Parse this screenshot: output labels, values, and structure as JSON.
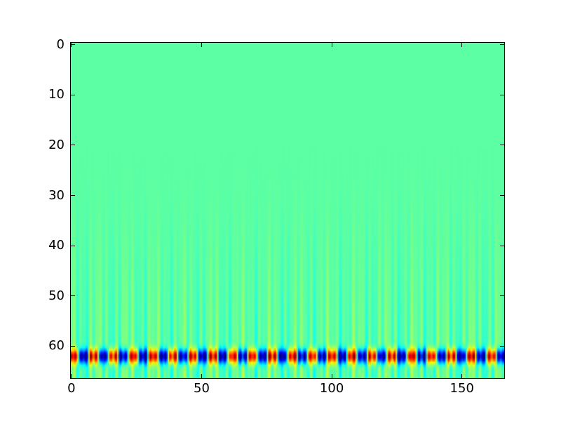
{
  "figure": {
    "kind": "matplotlib-style image plot",
    "background_color": "#ffffff",
    "spine_color": "#000000",
    "tick_label_color": "#000000"
  },
  "chart_data": {
    "type": "heatmap",
    "title": "",
    "xlabel": "",
    "ylabel": "",
    "x_tick_values": [
      0,
      50,
      100,
      150
    ],
    "x_tick_labels": [
      "0",
      "50",
      "100",
      "150"
    ],
    "y_tick_values": [
      0,
      10,
      20,
      30,
      40,
      50,
      60
    ],
    "y_tick_labels": [
      "0",
      "10",
      "20",
      "30",
      "40",
      "50",
      "60"
    ],
    "xlim": [
      -0.5,
      166.5
    ],
    "ylim": [
      66.5,
      -0.5
    ],
    "y_axis_inverted": true,
    "grid": false,
    "legend": null,
    "colormap": "jet",
    "image": {
      "cols": 167,
      "rows": 67,
      "base_value": 0.465,
      "background_color_approx": "#5CFB9C",
      "wavelet_row": {
        "description": "strong oscillating row: ~22 red maxima alternating with double navy-blue minima, yellow/cyan fringes",
        "center_row": 62,
        "sigma_rows": 0.95,
        "period_cols": 7.64,
        "phase_offset_cols": 1.11,
        "amp_fundamental": 0.5,
        "amp_third_harmonic": 0.18,
        "gain": 1.05,
        "extreme_colors": [
          "#000080",
          "#0000ff",
          "#00ffff",
          "#ffff00",
          "#ff0000",
          "#ad0000"
        ]
      },
      "stripes": {
        "description": "faint vertical green/yellow/teal stripes, absent above row ~19, strengthening toward bottom",
        "amp": 0.09,
        "start_row_min": 19,
        "start_row_max": 28,
        "ramp_power": 1.4,
        "freqs": [
          1.93,
          0.57,
          3.11,
          5.07
        ],
        "phases": [
          0.0,
          2.0,
          4.0,
          1.0
        ]
      }
    }
  }
}
